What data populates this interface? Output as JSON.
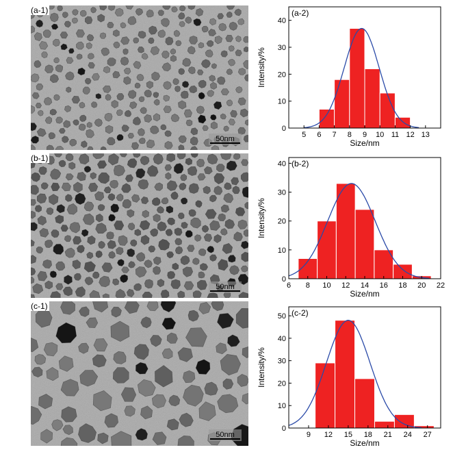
{
  "micrographs": [
    {
      "label": "(a-1)",
      "scale_bar": "50nm",
      "density": 0.33,
      "r_min": 4.2,
      "r_max": 6.6,
      "tone": 0.46,
      "seed": 11
    },
    {
      "label": "(b-1)",
      "scale_bar": "50nm",
      "density": 0.75,
      "r_min": 5.0,
      "r_max": 8.6,
      "tone": 0.4,
      "seed": 23
    },
    {
      "label": "(c-1)",
      "scale_bar": "50nm",
      "density": 0.55,
      "r_min": 7.5,
      "r_max": 17.0,
      "tone": 0.45,
      "seed": 37
    }
  ],
  "chart_data": [
    {
      "type": "bar",
      "panel_label": "(a-2)",
      "xlabel": "Size/nm",
      "ylabel": "Intensity/%",
      "xlim": [
        4,
        14
      ],
      "ylim": [
        0,
        45
      ],
      "x_ticks": [
        5,
        6,
        7,
        8,
        9,
        10,
        11,
        12,
        13
      ],
      "y_ticks": [
        0,
        10,
        20,
        30,
        40
      ],
      "bin_width": 1,
      "bins": [
        {
          "start": 6,
          "value": 7
        },
        {
          "start": 7,
          "value": 18
        },
        {
          "start": 8,
          "value": 37
        },
        {
          "start": 9,
          "value": 22
        },
        {
          "start": 10,
          "value": 13
        },
        {
          "start": 11,
          "value": 4
        }
      ],
      "fit": {
        "type": "gaussian",
        "center": 8.8,
        "sigma": 1.15,
        "peak": 37
      },
      "bar_color": "#ee2222",
      "fit_color": "#2a4aa8"
    },
    {
      "type": "bar",
      "panel_label": "(b-2)",
      "xlabel": "Size/nm",
      "ylabel": "Intensity/%",
      "xlim": [
        6,
        22
      ],
      "ylim": [
        0,
        42
      ],
      "x_ticks": [
        6,
        8,
        10,
        12,
        14,
        16,
        18,
        20,
        22
      ],
      "y_ticks": [
        0,
        10,
        20,
        30,
        40
      ],
      "bin_width": 2,
      "bins": [
        {
          "start": 7,
          "value": 7
        },
        {
          "start": 9,
          "value": 20
        },
        {
          "start": 11,
          "value": 33
        },
        {
          "start": 13,
          "value": 24
        },
        {
          "start": 15,
          "value": 10
        },
        {
          "start": 17,
          "value": 5
        },
        {
          "start": 19,
          "value": 1
        }
      ],
      "fit": {
        "type": "gaussian",
        "center": 12.6,
        "sigma": 2.5,
        "peak": 33
      },
      "bar_color": "#ee2222",
      "fit_color": "#2a4aa8"
    },
    {
      "type": "bar",
      "panel_label": "(c-2)",
      "xlabel": "Size/nm",
      "ylabel": "Intensity/%",
      "xlim": [
        6,
        29
      ],
      "ylim": [
        0,
        54
      ],
      "x_ticks": [
        9,
        12,
        15,
        18,
        21,
        24,
        27
      ],
      "y_ticks": [
        0,
        10,
        20,
        30,
        40,
        50
      ],
      "bin_width": 3,
      "bins": [
        {
          "start": 10,
          "value": 29
        },
        {
          "start": 13,
          "value": 48
        },
        {
          "start": 16,
          "value": 22
        },
        {
          "start": 19,
          "value": 3
        },
        {
          "start": 22,
          "value": 6
        },
        {
          "start": 25,
          "value": 1
        }
      ],
      "fit": {
        "type": "gaussian",
        "center": 15,
        "sigma": 3.3,
        "peak": 48
      },
      "bar_color": "#ee2222",
      "fit_color": "#2a4aa8"
    }
  ]
}
